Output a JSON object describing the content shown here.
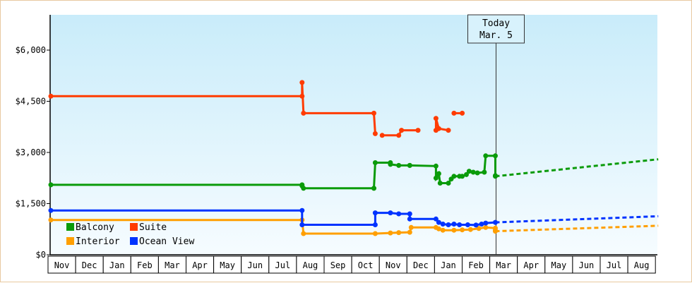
{
  "chart_data": {
    "type": "line",
    "title": "",
    "xlabel": "",
    "ylabel": "",
    "x_tick_labels": [
      "Nov",
      "Dec",
      "Jan",
      "Feb",
      "Mar",
      "Apr",
      "May",
      "Jun",
      "Jul",
      "Aug",
      "Sep",
      "Oct",
      "Nov",
      "Dec",
      "Jan",
      "Feb",
      "Mar",
      "Apr",
      "May",
      "Jun",
      "Jul",
      "Aug"
    ],
    "y_tick_labels": [
      "$0",
      "$1,500",
      "$3,000",
      "$4,500",
      "$6,000"
    ],
    "y_ticks": [
      0,
      1500,
      3000,
      4500,
      6000
    ],
    "ylim": [
      0,
      6000
    ],
    "xlim_months": [
      0,
      22
    ],
    "x_unit_note_hidden": true,
    "grid": false,
    "legend_position": "bottom-left",
    "today_marker": {
      "line1": "Today",
      "line2": "Mar. 5",
      "x": 16.1
    },
    "series": [
      {
        "name": "Balcony",
        "color": "#0a9b0a",
        "points": [
          [
            0,
            2050
          ],
          [
            9.1,
            2050
          ],
          [
            9.1,
            2020
          ],
          [
            9.15,
            1950
          ],
          [
            11.7,
            1950
          ],
          [
            11.7,
            1950
          ],
          [
            11.75,
            2700
          ],
          [
            12.3,
            2700
          ],
          [
            12.3,
            2650
          ],
          [
            12.6,
            2620
          ],
          [
            13.0,
            2620
          ],
          [
            13.0,
            2620
          ],
          [
            13.95,
            2600
          ],
          [
            13.95,
            2250
          ],
          [
            14.05,
            2380
          ],
          [
            14.1,
            2100
          ],
          [
            14.4,
            2100
          ],
          [
            14.5,
            2220
          ],
          [
            14.6,
            2300
          ],
          [
            14.8,
            2300
          ],
          [
            14.9,
            2300
          ],
          [
            15.05,
            2350
          ],
          [
            15.15,
            2450
          ],
          [
            15.3,
            2420
          ],
          [
            15.45,
            2400
          ],
          [
            15.7,
            2420
          ],
          [
            15.75,
            2900
          ],
          [
            16.1,
            2900
          ],
          [
            16.1,
            2320
          ],
          [
            16.1,
            2300
          ]
        ],
        "projection": [
          [
            16.1,
            2300
          ],
          [
            22,
            2800
          ]
        ]
      },
      {
        "name": "Suite",
        "color": "#ff3b00",
        "points": [
          [
            0,
            4650
          ],
          [
            9.1,
            4650
          ],
          [
            9.1,
            5050
          ],
          [
            9.15,
            4150
          ],
          [
            11.7,
            4150
          ],
          [
            11.75,
            3550
          ]
        ],
        "points_b": [
          [
            12.0,
            3500
          ],
          [
            12.6,
            3500
          ],
          [
            12.7,
            3650
          ],
          [
            13.3,
            3650
          ]
        ],
        "points_c": [
          [
            13.95,
            3650
          ],
          [
            13.95,
            4000
          ],
          [
            14.05,
            3700
          ],
          [
            14.4,
            3650
          ]
        ],
        "points_d": [
          [
            14.6,
            4150
          ],
          [
            14.9,
            4150
          ]
        ]
      },
      {
        "name": "Interior",
        "color": "#ff9f00",
        "points": [
          [
            0,
            1020
          ],
          [
            9.1,
            1020
          ],
          [
            9.15,
            620
          ],
          [
            11.75,
            620
          ],
          [
            12.3,
            640
          ],
          [
            12.6,
            650
          ],
          [
            13.0,
            660
          ],
          [
            13.05,
            800
          ],
          [
            13.95,
            800
          ],
          [
            14.05,
            760
          ],
          [
            14.2,
            720
          ],
          [
            14.6,
            720
          ],
          [
            14.9,
            730
          ],
          [
            15.2,
            740
          ],
          [
            15.5,
            770
          ],
          [
            15.75,
            800
          ],
          [
            16.1,
            780
          ],
          [
            16.1,
            720
          ],
          [
            16.1,
            690
          ]
        ],
        "projection": [
          [
            16.1,
            690
          ],
          [
            22,
            850
          ]
        ]
      },
      {
        "name": "Ocean View",
        "color": "#0033ff",
        "points": [
          [
            0,
            1300
          ],
          [
            9.1,
            1300
          ],
          [
            9.1,
            880
          ],
          [
            11.75,
            880
          ],
          [
            11.75,
            1230
          ],
          [
            12.3,
            1230
          ],
          [
            12.6,
            1200
          ],
          [
            13.0,
            1200
          ],
          [
            13.0,
            1050
          ],
          [
            13.95,
            1050
          ],
          [
            14.05,
            950
          ],
          [
            14.2,
            900
          ],
          [
            14.4,
            880
          ],
          [
            14.6,
            900
          ],
          [
            14.8,
            880
          ],
          [
            15.1,
            880
          ],
          [
            15.4,
            870
          ],
          [
            15.6,
            900
          ],
          [
            15.75,
            930
          ],
          [
            16.1,
            950
          ]
        ],
        "projection": [
          [
            16.1,
            950
          ],
          [
            22,
            1130
          ]
        ]
      }
    ]
  }
}
